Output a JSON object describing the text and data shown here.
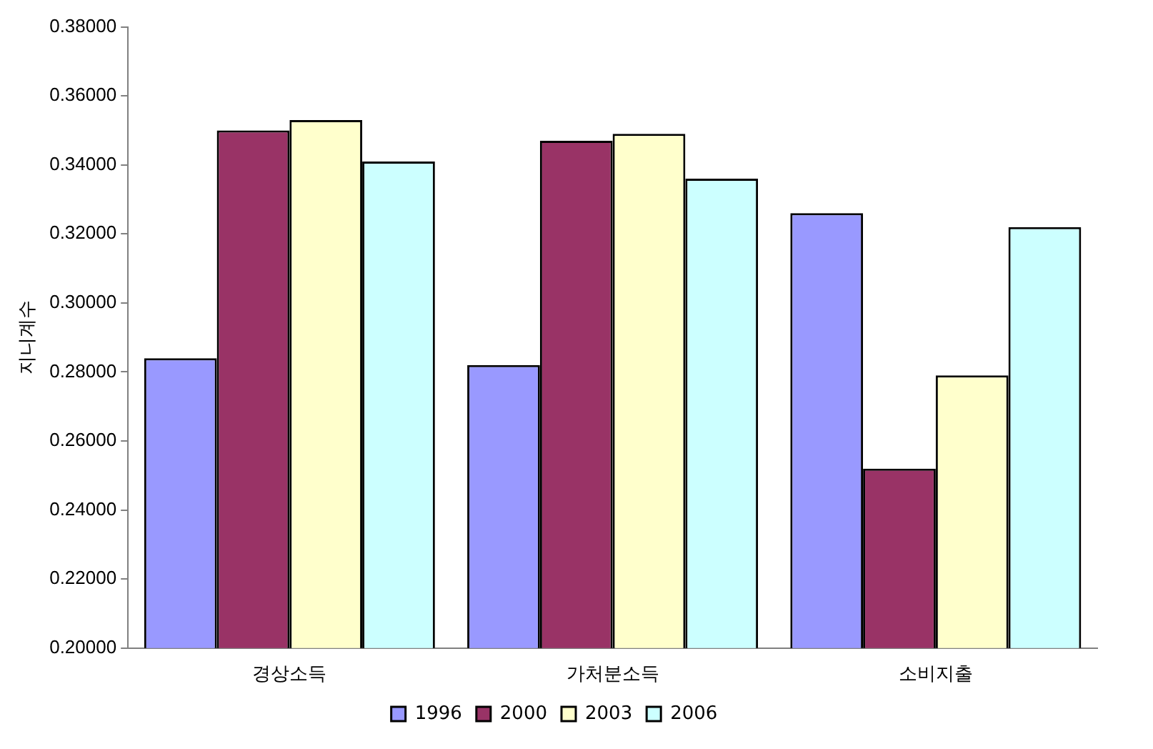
{
  "chart_data": {
    "type": "bar",
    "ylabel": "지니계수",
    "categories": [
      "경상소득",
      "가처분소득",
      "소비지출"
    ],
    "series": [
      {
        "name": "1996",
        "color": "#9999ff",
        "values": [
          0.284,
          0.282,
          0.326
        ]
      },
      {
        "name": "2000",
        "color": "#993366",
        "values": [
          0.35,
          0.347,
          0.252
        ]
      },
      {
        "name": "2003",
        "color": "#ffffcc",
        "values": [
          0.353,
          0.349,
          0.279
        ]
      },
      {
        "name": "2006",
        "color": "#ccffff",
        "values": [
          0.341,
          0.336,
          0.322
        ]
      }
    ],
    "ylim": [
      0.2,
      0.38
    ],
    "yticks": [
      {
        "value": 0.2,
        "label": "0.20000"
      },
      {
        "value": 0.22,
        "label": "0.22000"
      },
      {
        "value": 0.24,
        "label": "0.24000"
      },
      {
        "value": 0.26,
        "label": "0.26000"
      },
      {
        "value": 0.28,
        "label": "0.28000"
      },
      {
        "value": 0.3,
        "label": "0.30000"
      },
      {
        "value": 0.32,
        "label": "0.32000"
      },
      {
        "value": 0.34,
        "label": "0.34000"
      },
      {
        "value": 0.36,
        "label": "0.36000"
      },
      {
        "value": 0.38,
        "label": "0.38000"
      }
    ],
    "grid": false,
    "legend": "bottom"
  }
}
